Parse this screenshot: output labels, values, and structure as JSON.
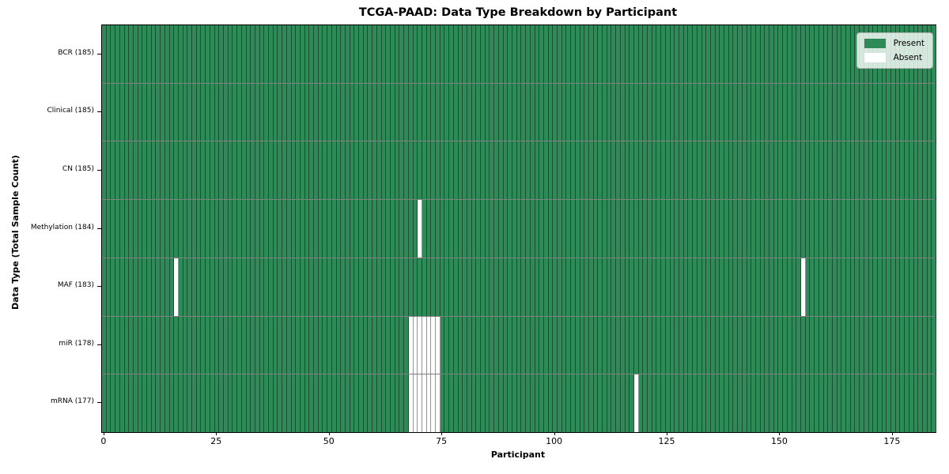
{
  "chart_data": {
    "type": "heatmap",
    "title": "TCGA-PAAD: Data Type Breakdown by Participant",
    "xlabel": "Participant",
    "ylabel": "Data Type (Total Sample Count)",
    "n_participants": 185,
    "x_range": [
      -0.5,
      184.5
    ],
    "x_ticks": [
      0,
      25,
      50,
      75,
      100,
      125,
      150,
      175
    ],
    "grid": false,
    "legend_position": "upper right",
    "present_color": "#2e8b57",
    "absent_color": "#ffffff",
    "legend": [
      {
        "key": "present",
        "label": "Present",
        "color": "#2e8b57"
      },
      {
        "key": "absent",
        "label": "Absent",
        "color": "#ffffff"
      }
    ],
    "rows": [
      {
        "key": "bcr",
        "data_type": "BCR",
        "label": "BCR (185)",
        "present_count": 185,
        "absent_participants": []
      },
      {
        "key": "clinical",
        "data_type": "Clinical",
        "label": "Clinical (185)",
        "present_count": 185,
        "absent_participants": []
      },
      {
        "key": "cn",
        "data_type": "CN",
        "label": "CN (185)",
        "present_count": 185,
        "absent_participants": []
      },
      {
        "key": "methylation",
        "data_type": "Methylation",
        "label": "Methylation (184)",
        "present_count": 184,
        "absent_participants": [
          70
        ]
      },
      {
        "key": "maf",
        "data_type": "MAF",
        "label": "MAF (183)",
        "present_count": 183,
        "absent_participants": [
          16,
          155
        ]
      },
      {
        "key": "mir",
        "data_type": "miR",
        "label": "miR (178)",
        "present_count": 178,
        "absent_participants": [
          68,
          69,
          70,
          71,
          72,
          73,
          74
        ]
      },
      {
        "key": "mrna",
        "data_type": "mRNA",
        "label": "mRNA (177)",
        "present_count": 177,
        "absent_participants": [
          68,
          69,
          70,
          71,
          72,
          73,
          74,
          118
        ]
      }
    ]
  }
}
